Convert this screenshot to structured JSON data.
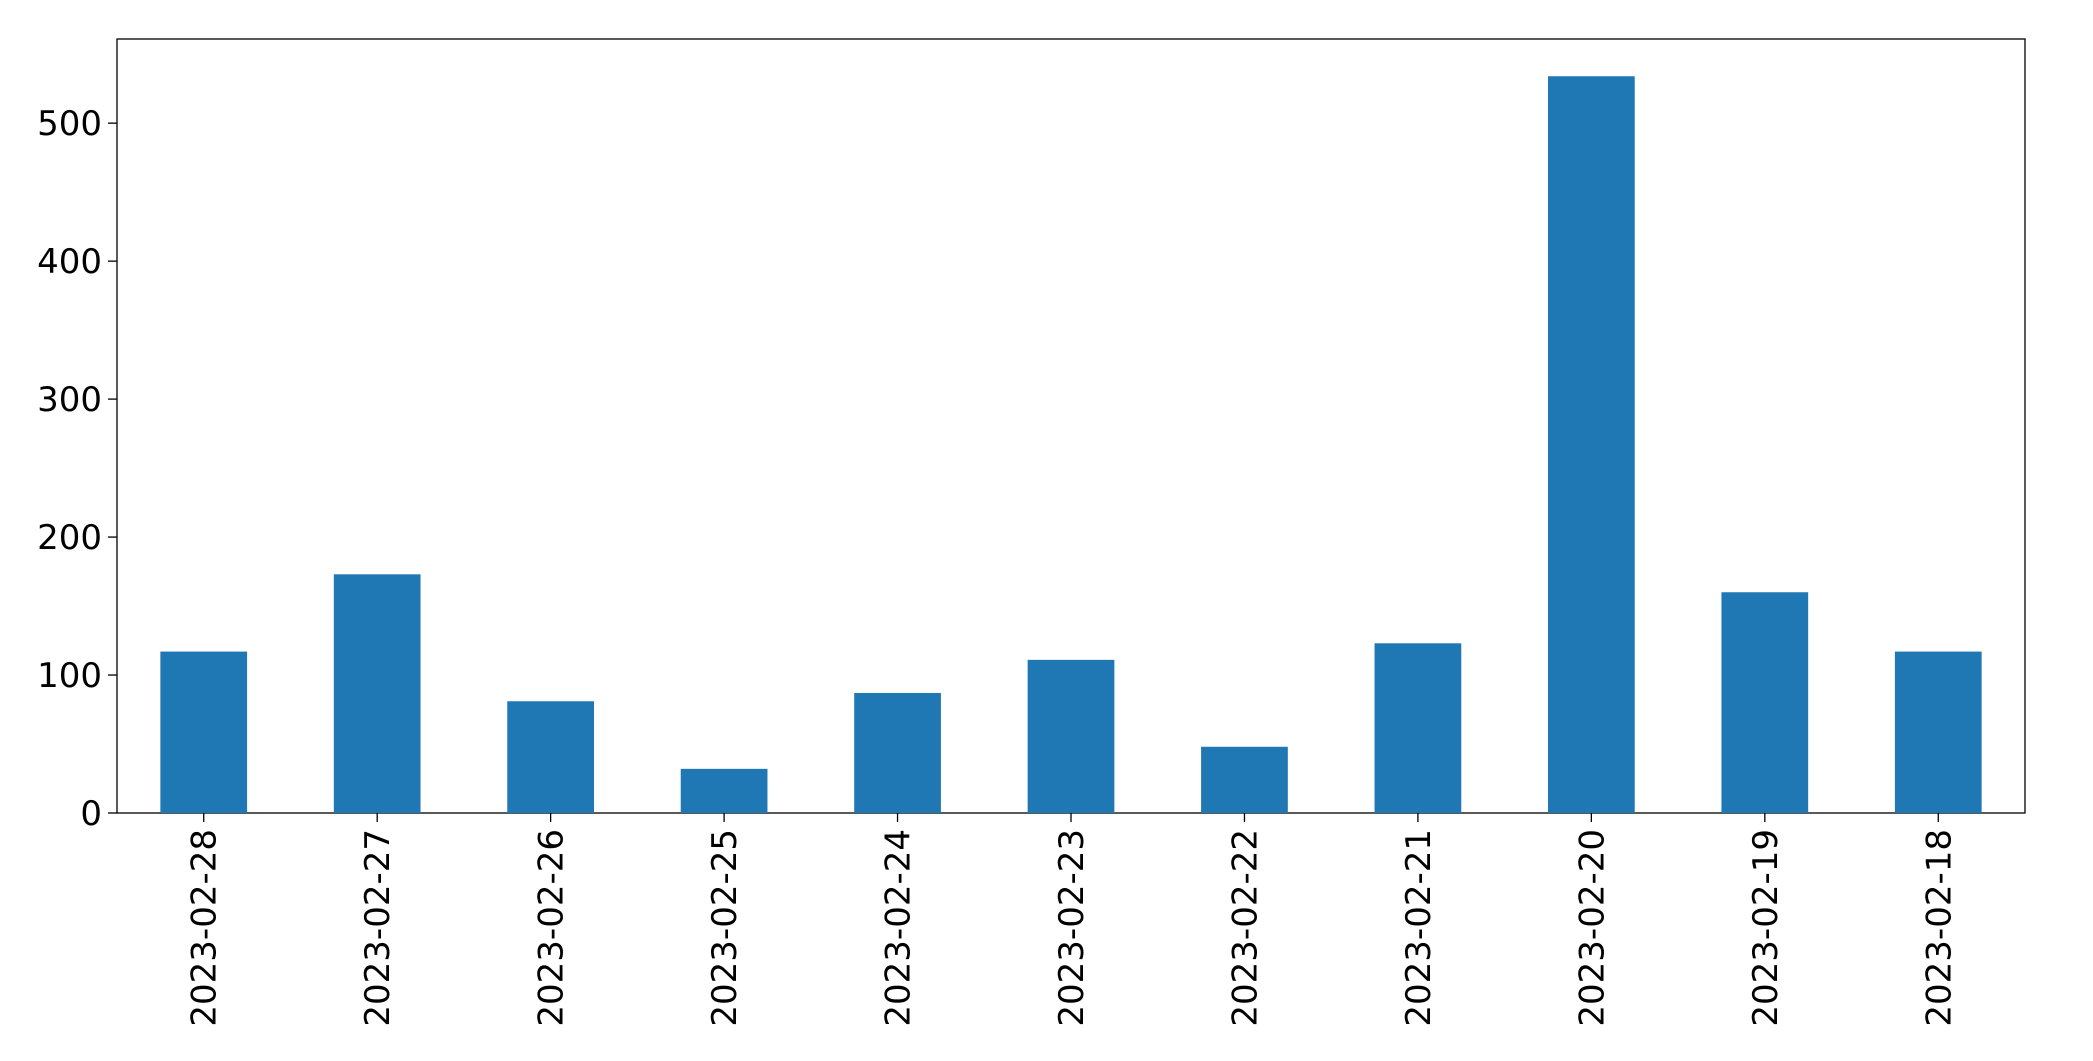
{
  "chart_data": {
    "type": "bar",
    "categories": [
      "2023-02-28",
      "2023-02-27",
      "2023-02-26",
      "2023-02-25",
      "2023-02-24",
      "2023-02-23",
      "2023-02-22",
      "2023-02-21",
      "2023-02-20",
      "2023-02-19",
      "2023-02-18"
    ],
    "values": [
      117,
      173,
      81,
      32,
      87,
      111,
      48,
      123,
      534,
      160,
      117
    ],
    "color": "#1f77b4",
    "ylim": [
      0,
      561
    ],
    "yticks": [
      0,
      100,
      200,
      300,
      400,
      500
    ],
    "grid": false
  }
}
